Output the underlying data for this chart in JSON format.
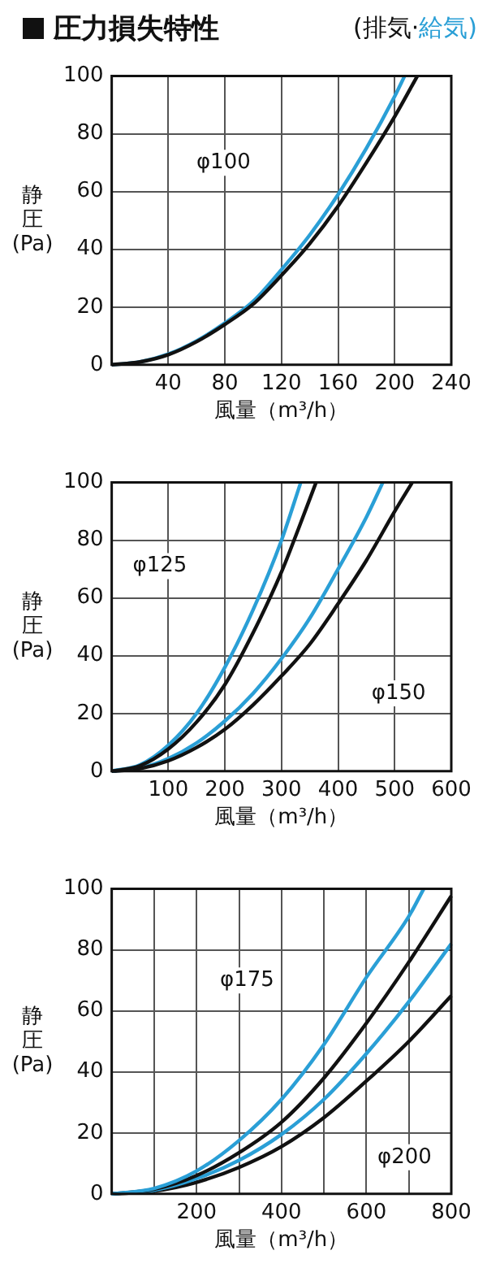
{
  "chart_data": [
    {
      "type": "line",
      "title": "圧力損失特性",
      "xlabel": "風量（m³/h）",
      "ylabel": "静圧(Pa)",
      "legend": "top right",
      "grid": true,
      "marker": "none",
      "xlim": [
        0,
        240
      ],
      "xticks": [
        {
          "value": 0,
          "label": null
        },
        40,
        80,
        120,
        160,
        200,
        240
      ],
      "ylim": [
        0,
        100
      ],
      "yticks": [
        0,
        20,
        40,
        60,
        80,
        100
      ],
      "annotations": [
        {
          "text": "φ100",
          "x": 79,
          "y": 70
        }
      ],
      "series": [
        {
          "name": "(排気·",
          "color": "#111111",
          "x": [
            0,
            20,
            40,
            60,
            80,
            100,
            120,
            140,
            160,
            180,
            200,
            216
          ],
          "values": [
            0,
            1,
            3.5,
            8,
            14,
            21,
            31,
            42,
            55,
            70,
            86,
            100
          ]
        },
        {
          "name": "給気)",
          "color": "#2a9fd6",
          "x": [
            0,
            20,
            40,
            60,
            80,
            100,
            120,
            140,
            160,
            180,
            200,
            207
          ],
          "values": [
            0,
            1,
            3.7,
            8.3,
            14.5,
            22,
            33,
            45,
            59,
            75,
            93,
            100
          ]
        }
      ]
    },
    {
      "type": "line",
      "xlabel": "風量（m³/h）",
      "ylabel": "静圧(Pa)",
      "grid": true,
      "marker": "none",
      "xlim": [
        0,
        600
      ],
      "xticks": [
        {
          "value": 0,
          "label": null
        },
        100,
        200,
        300,
        400,
        500,
        600
      ],
      "ylim": [
        0,
        100
      ],
      "yticks": [
        0,
        20,
        40,
        60,
        80,
        100
      ],
      "annotations": [
        {
          "text": "φ125",
          "x": 85,
          "y": 71
        },
        {
          "text": "φ150",
          "x": 507,
          "y": 27
        }
      ],
      "series": [
        {
          "color": "#111111",
          "x": [
            0,
            50,
            100,
            150,
            200,
            250,
            300,
            330,
            361
          ],
          "values": [
            0,
            1.9,
            7.7,
            17,
            30,
            48,
            69,
            84,
            100
          ]
        },
        {
          "color": "#2a9fd6",
          "x": [
            0,
            50,
            100,
            150,
            200,
            250,
            300,
            334
          ],
          "values": [
            0,
            2.2,
            9,
            20,
            36,
            56,
            80,
            100
          ]
        },
        {
          "color": "#111111",
          "x": [
            0,
            50,
            100,
            150,
            200,
            250,
            300,
            350,
            400,
            450,
            500,
            531
          ],
          "values": [
            0,
            0.9,
            3.6,
            8.2,
            14.5,
            23,
            33,
            44,
            58,
            73,
            90,
            100
          ]
        },
        {
          "color": "#2a9fd6",
          "x": [
            0,
            50,
            100,
            150,
            200,
            250,
            300,
            350,
            400,
            450,
            479
          ],
          "values": [
            0,
            1.1,
            4.4,
            9.8,
            17.4,
            27,
            39,
            53,
            70,
            88,
            100
          ]
        }
      ]
    },
    {
      "type": "line",
      "xlabel": "風量（m³/h）",
      "ylabel": "静圧(Pa)",
      "grid": true,
      "marker": "none",
      "xlim": [
        0,
        800
      ],
      "xticks": [
        {
          "value": 0,
          "label": null
        },
        {
          "value": 100,
          "label": null
        },
        200,
        {
          "value": 300,
          "label": null
        },
        400,
        {
          "value": 500,
          "label": null
        },
        600,
        {
          "value": 700,
          "label": null
        },
        800
      ],
      "ylim": [
        0,
        100
      ],
      "yticks": [
        0,
        20,
        40,
        60,
        80,
        100
      ],
      "annotations": [
        {
          "text": "φ175",
          "x": 319,
          "y": 70
        },
        {
          "text": "φ200",
          "x": 690,
          "y": 12
        }
      ],
      "series": [
        {
          "color": "#2a9fd6",
          "x": [
            0,
            100,
            200,
            300,
            400,
            500,
            600,
            700,
            735
          ],
          "values": [
            0,
            1.8,
            7.5,
            17.5,
            31,
            49,
            71,
            91,
            100
          ]
        },
        {
          "color": "#111111",
          "x": [
            0,
            100,
            200,
            300,
            400,
            500,
            600,
            700,
            800
          ],
          "values": [
            0,
            1.5,
            6,
            13.5,
            23.5,
            38,
            56,
            76,
            97.7
          ]
        },
        {
          "color": "#2a9fd6",
          "x": [
            0,
            100,
            200,
            300,
            400,
            500,
            600,
            700,
            800
          ],
          "values": [
            0,
            1.2,
            5,
            11,
            19.5,
            31,
            46,
            63,
            82
          ]
        },
        {
          "color": "#111111",
          "x": [
            0,
            100,
            200,
            300,
            400,
            500,
            600,
            700,
            800
          ],
          "values": [
            0,
            0.9,
            3.8,
            8.7,
            15.5,
            25,
            37,
            50,
            65
          ]
        }
      ]
    }
  ]
}
